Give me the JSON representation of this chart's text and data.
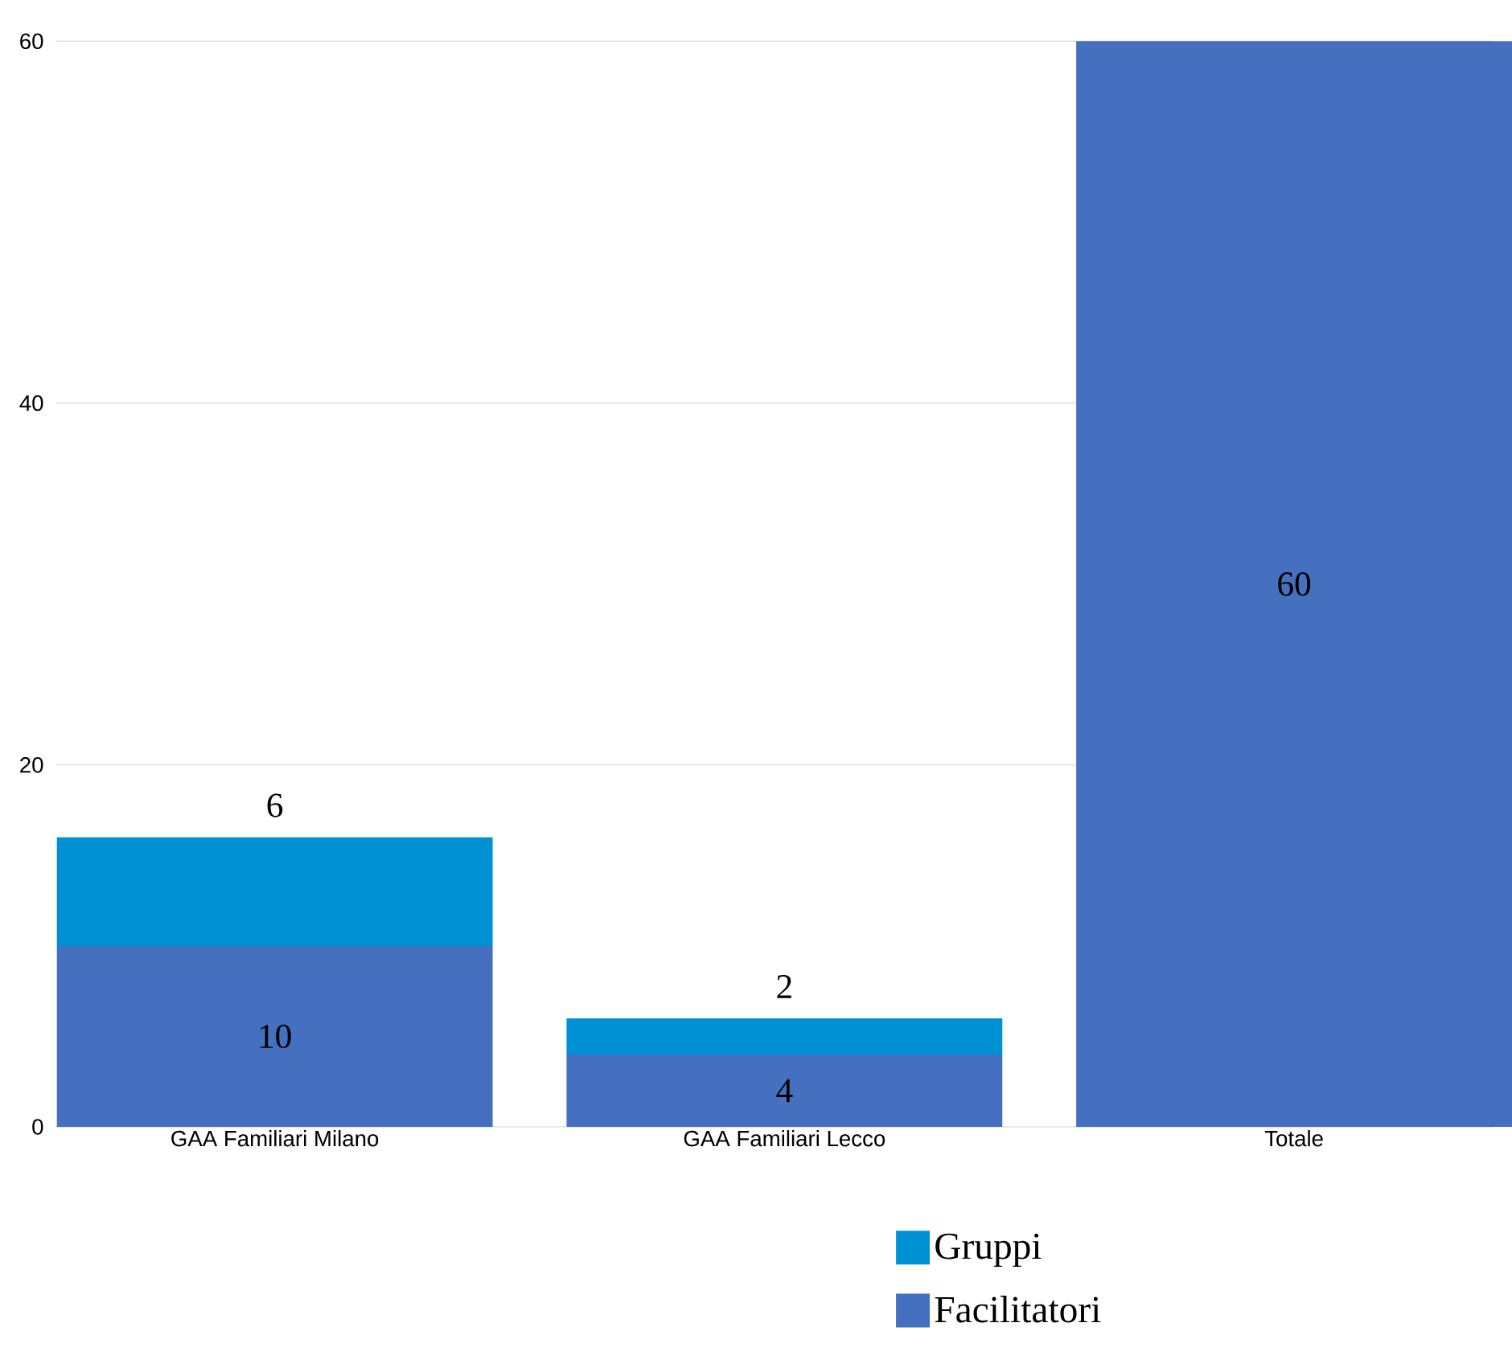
{
  "chart_data": {
    "type": "bar",
    "stacked": true,
    "categories": [
      "GAA Familiari Milano",
      "GAA Familiari Lecco",
      "Totale"
    ],
    "series": [
      {
        "name": "Facilitatori",
        "color": "#4470bf",
        "values": [
          10,
          4,
          60
        ]
      },
      {
        "name": "Gruppi",
        "color": "#0091d5",
        "values": [
          6,
          2,
          null
        ]
      }
    ],
    "ylim": [
      0,
      60
    ],
    "yticks": [
      0,
      20,
      40,
      60
    ],
    "grid": "y",
    "legend": "bottom",
    "data_labels": true
  }
}
